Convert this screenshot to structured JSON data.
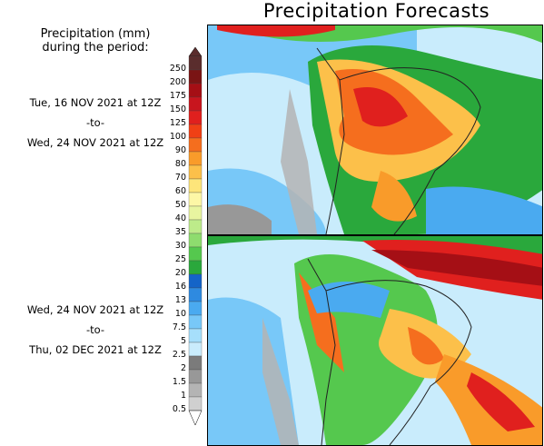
{
  "title": "Precipitation Forecasts",
  "legend": {
    "heading_line1": "Precipitation (mm)",
    "heading_line2": "during the period:",
    "levels": [
      "250",
      "200",
      "175",
      "150",
      "125",
      "100",
      "90",
      "80",
      "70",
      "60",
      "50",
      "40",
      "35",
      "30",
      "25",
      "20",
      "16",
      "13",
      "10",
      "7.5",
      "5",
      "2.5",
      "2",
      "1.5",
      "1",
      "0.5"
    ],
    "colors": [
      "#5a2d2d",
      "#7a1414",
      "#a50f15",
      "#c8151e",
      "#e0201e",
      "#f04015",
      "#f56e1e",
      "#f99b2a",
      "#fcc04a",
      "#fde57a",
      "#fdf7a6",
      "#e8f5a0",
      "#bdeb8a",
      "#8edc6e",
      "#55c84e",
      "#2aa83c",
      "#1464c8",
      "#2e8ae0",
      "#4aaaf0",
      "#78c8f8",
      "#a6dffb",
      "#c9ecfc",
      "#7b7b7b",
      "#989898",
      "#b4b4b4",
      "#d0d0d0"
    ]
  },
  "periods": [
    {
      "start": "Tue, 16 NOV 2021 at 12Z",
      "sep": "-to-",
      "end": "Wed, 24 NOV 2021 at 12Z"
    },
    {
      "start": "Wed, 24 NOV 2021 at 12Z",
      "sep": "-to-",
      "end": "Thu, 02 DEC 2021 at 12Z"
    }
  ]
}
